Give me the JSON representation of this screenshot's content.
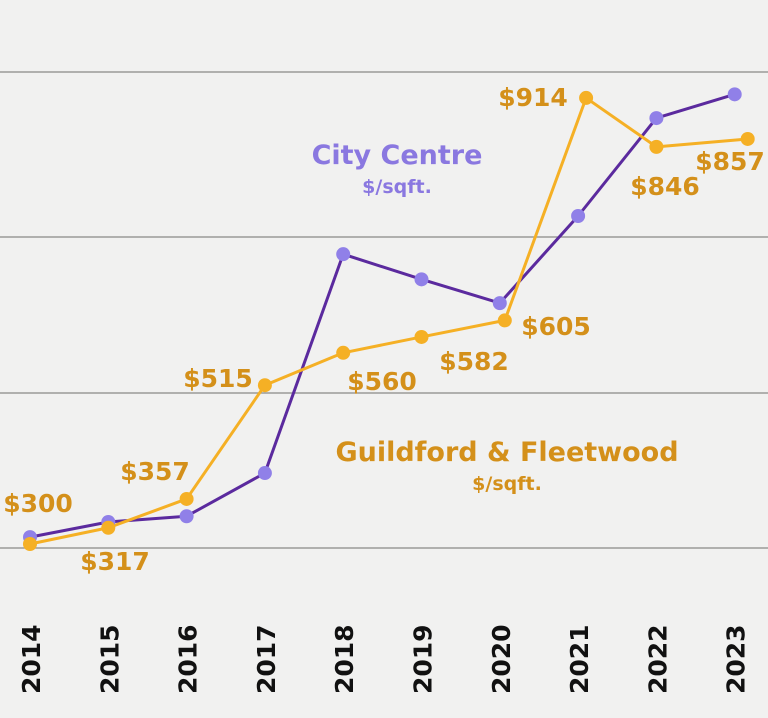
{
  "chart_data": {
    "type": "line",
    "categories": [
      "2014",
      "2015",
      "2016",
      "2017",
      "2018",
      "2019",
      "2020",
      "2021",
      "2022",
      "2023"
    ],
    "series": [
      {
        "name": "City Centre",
        "unit": "$/sqft.",
        "color": "#5b2a9e",
        "marker_color": "#9080e8",
        "label_color": "#8a78e0",
        "values": [
          304,
          325,
          333,
          393,
          697,
          662,
          629,
          750,
          886,
          919
        ]
      },
      {
        "name": "Guildford & Fleetwood",
        "unit": "$/sqft.",
        "color": "#f5b025",
        "marker_color": "#f5b025",
        "label_color": "#d4901a",
        "values": [
          300,
          317,
          357,
          515,
          560,
          582,
          605,
          914,
          846,
          857
        ],
        "data_labels": [
          "$300",
          "$317",
          "$357",
          "$515",
          "$560",
          "$582",
          "$605",
          "$914",
          "$846",
          "$857"
        ]
      }
    ],
    "grid": true,
    "legend": "inline labels",
    "xlabel": "",
    "ylabel": "",
    "title": ""
  }
}
